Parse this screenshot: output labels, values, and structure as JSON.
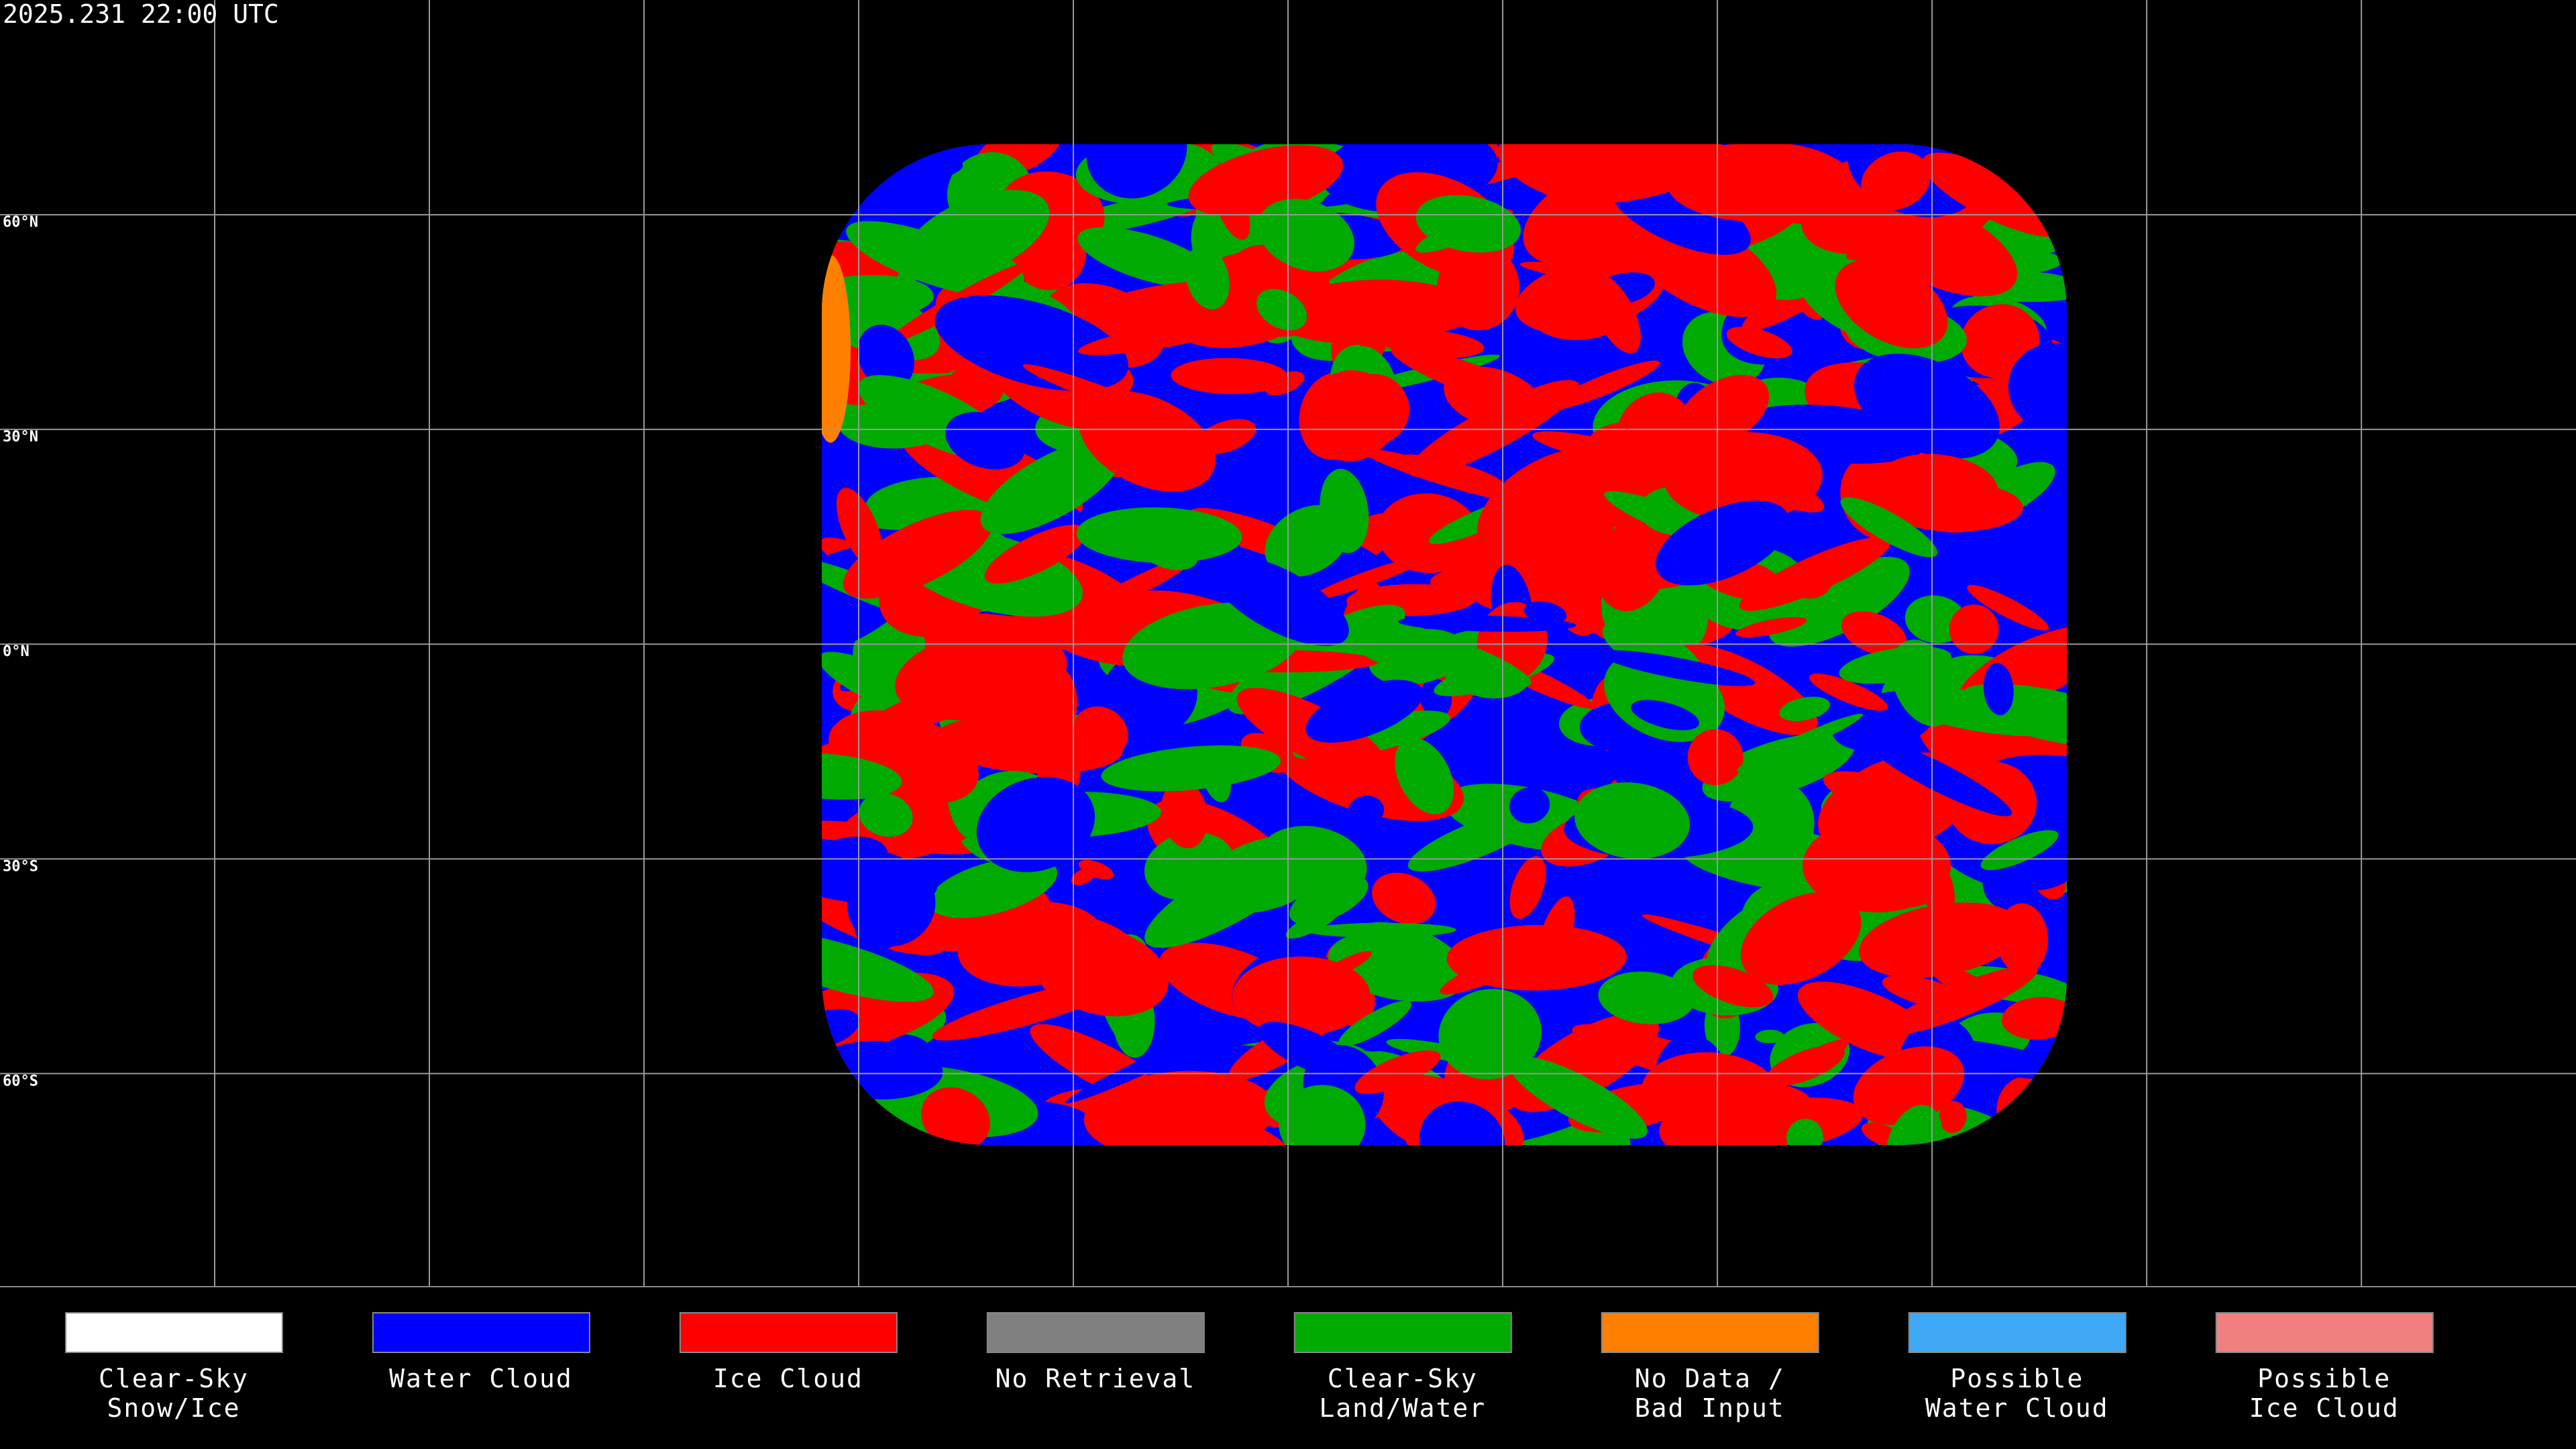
{
  "timestamp": "2025.231 22:00 UTC",
  "grid_labels": [
    "60°N",
    "30°N",
    "0°N",
    "30°S",
    "60°S"
  ],
  "legend": [
    {
      "color": "#ffffff",
      "lines": [
        "Clear-Sky",
        "Snow/Ice"
      ]
    },
    {
      "color": "#0000ff",
      "lines": [
        "Water Cloud"
      ]
    },
    {
      "color": "#ff0000",
      "lines": [
        "Ice Cloud"
      ]
    },
    {
      "color": "#808080",
      "lines": [
        "No Retrieval"
      ]
    },
    {
      "color": "#00aa00",
      "lines": [
        "Clear-Sky",
        "Land/Water"
      ]
    },
    {
      "color": "#ff8000",
      "lines": [
        "No Data /",
        "Bad Input"
      ]
    },
    {
      "color": "#3fa9f5",
      "lines": [
        "Possible",
        "Water Cloud"
      ]
    },
    {
      "color": "#f08080",
      "lines": [
        "Possible",
        "Ice Cloud"
      ]
    }
  ]
}
